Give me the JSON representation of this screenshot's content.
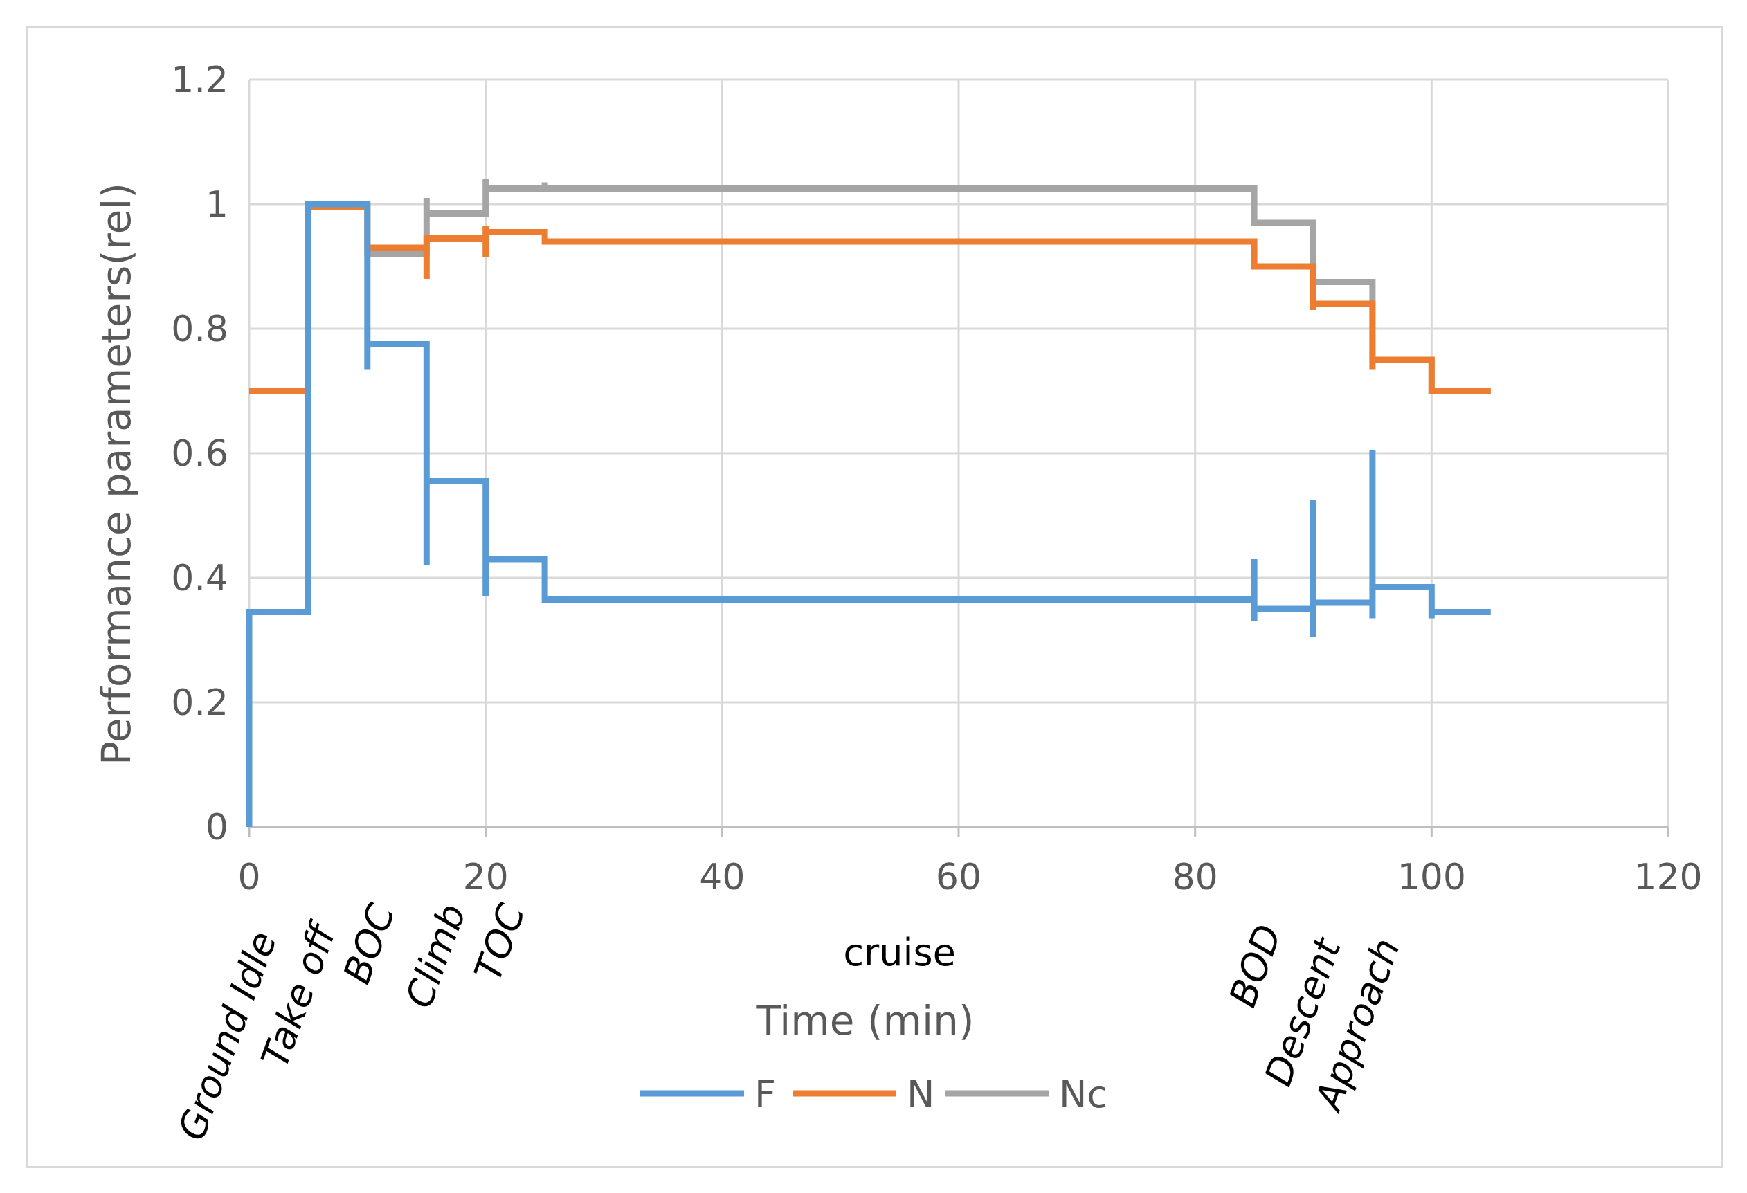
{
  "chart_data": {
    "type": "line",
    "title": "",
    "xlabel": "Time (min)",
    "ylabel": "Performance parameters(rel)",
    "xlim": [
      0,
      120
    ],
    "ylim": [
      0,
      1.2
    ],
    "xticks": [
      0,
      20,
      40,
      60,
      80,
      100,
      120
    ],
    "yticks": [
      0,
      0.2,
      0.4,
      0.6,
      0.8,
      1,
      1.2
    ],
    "xtick_labels": [
      "0",
      "20",
      "40",
      "60",
      "80",
      "100",
      "120"
    ],
    "ytick_labels": [
      "0",
      "0.2",
      "0.4",
      "0.6",
      "0.8",
      "1",
      "1.2"
    ],
    "grid": true,
    "legend_position": "bottom",
    "phase_labels": [
      {
        "label": "Ground Idle",
        "x": 0
      },
      {
        "label": "Take off",
        "x": 5
      },
      {
        "label": "BOC",
        "x": 10
      },
      {
        "label": "Climb",
        "x": 16
      },
      {
        "label": "TOC",
        "x": 21
      },
      {
        "label": "BOD",
        "x": 85
      },
      {
        "label": "Descent",
        "x": 90
      },
      {
        "label": "Approach",
        "x": 95
      }
    ],
    "annotation": {
      "label": "cruise",
      "x": 55
    },
    "series": [
      {
        "name": "F",
        "color": "#5b9bd5",
        "points": [
          [
            0,
            0
          ],
          [
            0,
            0.345
          ],
          [
            5,
            0.345
          ],
          [
            5,
            1.0
          ],
          [
            10,
            1.0
          ],
          [
            10,
            0.735
          ],
          [
            10,
            0.775
          ],
          [
            15,
            0.775
          ],
          [
            15,
            0.42
          ],
          [
            15,
            0.555
          ],
          [
            20,
            0.555
          ],
          [
            20,
            0.37
          ],
          [
            20,
            0.43
          ],
          [
            25,
            0.43
          ],
          [
            25,
            0.365
          ],
          [
            85,
            0.365
          ],
          [
            85,
            0.43
          ],
          [
            85,
            0.33
          ],
          [
            85,
            0.35
          ],
          [
            90,
            0.35
          ],
          [
            90,
            0.525
          ],
          [
            90,
            0.305
          ],
          [
            90,
            0.36
          ],
          [
            95,
            0.36
          ],
          [
            95,
            0.605
          ],
          [
            95,
            0.335
          ],
          [
            95,
            0.385
          ],
          [
            100,
            0.385
          ],
          [
            100,
            0.335
          ],
          [
            100,
            0.345
          ],
          [
            105,
            0.345
          ]
        ]
      },
      {
        "name": "N",
        "color": "#ed7d31",
        "points": [
          [
            0,
            0.7
          ],
          [
            5,
            0.7
          ],
          [
            5,
            0.995
          ],
          [
            10,
            0.995
          ],
          [
            10,
            0.93
          ],
          [
            15,
            0.93
          ],
          [
            15,
            0.88
          ],
          [
            15,
            0.945
          ],
          [
            20,
            0.945
          ],
          [
            20,
            0.915
          ],
          [
            20,
            0.965
          ],
          [
            20,
            0.955
          ],
          [
            25,
            0.955
          ],
          [
            25,
            0.94
          ],
          [
            85,
            0.94
          ],
          [
            85,
            0.9
          ],
          [
            90,
            0.9
          ],
          [
            90,
            0.83
          ],
          [
            90,
            0.84
          ],
          [
            95,
            0.84
          ],
          [
            95,
            0.735
          ],
          [
            95,
            0.75
          ],
          [
            100,
            0.75
          ],
          [
            100,
            0.7
          ],
          [
            105,
            0.7
          ]
        ]
      },
      {
        "name": "Nc",
        "color": "#a5a5a5",
        "points": [
          [
            0,
            0.7
          ],
          [
            5,
            0.7
          ],
          [
            5,
            0.995
          ],
          [
            10,
            0.995
          ],
          [
            10,
            0.92
          ],
          [
            15,
            0.92
          ],
          [
            15,
            1.01
          ],
          [
            15,
            0.985
          ],
          [
            20,
            0.985
          ],
          [
            20,
            1.04
          ],
          [
            20,
            1.025
          ],
          [
            25,
            1.025
          ],
          [
            25,
            1.035
          ],
          [
            25,
            1.025
          ],
          [
            85,
            1.025
          ],
          [
            85,
            0.97
          ],
          [
            90,
            0.97
          ],
          [
            90,
            0.875
          ],
          [
            95,
            0.875
          ],
          [
            95,
            0.75
          ],
          [
            100,
            0.75
          ],
          [
            100,
            0.7
          ],
          [
            105,
            0.7
          ]
        ]
      }
    ]
  }
}
